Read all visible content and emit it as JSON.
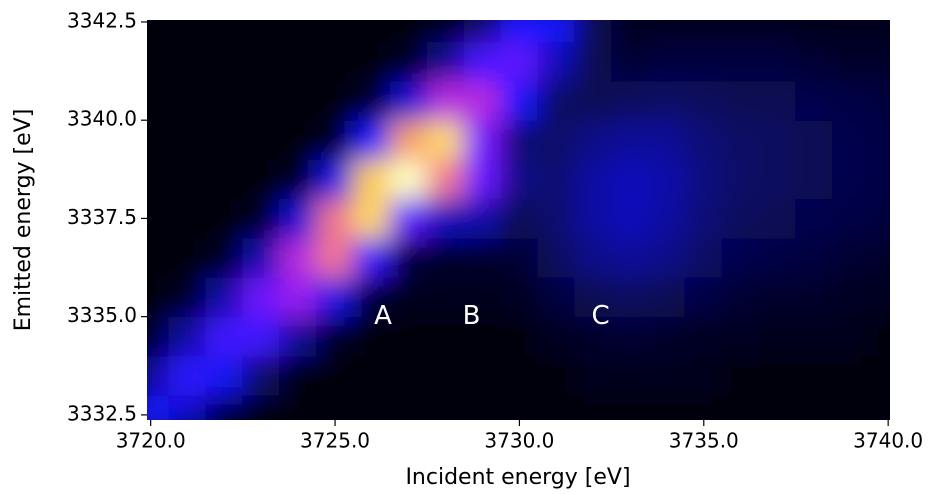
{
  "chart_data": {
    "type": "heatmap",
    "xlabel": "Incident energy [eV]",
    "ylabel": "Emitted energy [eV]",
    "colormap": "gnuplot2",
    "x": [
      3720,
      3721,
      3722,
      3723,
      3724,
      3725,
      3726,
      3727,
      3728,
      3729,
      3730,
      3731,
      3732,
      3733,
      3734,
      3735,
      3736,
      3737,
      3738,
      3739,
      3740
    ],
    "y": [
      3332.5,
      3333.5,
      3334.5,
      3335.5,
      3336.5,
      3337.5,
      3338.5,
      3339.5,
      3340.5,
      3341.5,
      3342.5
    ],
    "z": [
      [
        0.3,
        0.23,
        0.08,
        0.02,
        0.02,
        0.02,
        0.02,
        0.02,
        0.02,
        0.02,
        0.02,
        0.02,
        0.02,
        0.02,
        0.02,
        0.02,
        0.02,
        0.02,
        0.02,
        0.02,
        0.02
      ],
      [
        0.18,
        0.35,
        0.29,
        0.12,
        0.02,
        0.02,
        0.02,
        0.02,
        0.02,
        0.02,
        0.02,
        0.02,
        0.03,
        0.03,
        0.03,
        0.03,
        0.02,
        0.02,
        0.02,
        0.02,
        0.02
      ],
      [
        0.05,
        0.19,
        0.39,
        0.39,
        0.18,
        0.04,
        0.02,
        0.02,
        0.02,
        0.02,
        0.02,
        0.04,
        0.05,
        0.06,
        0.05,
        0.04,
        0.04,
        0.03,
        0.03,
        0.03,
        0.02
      ],
      [
        0.02,
        0.04,
        0.2,
        0.48,
        0.55,
        0.27,
        0.06,
        0.03,
        0.03,
        0.03,
        0.04,
        0.07,
        0.1,
        0.11,
        0.1,
        0.08,
        0.06,
        0.05,
        0.05,
        0.04,
        0.04
      ],
      [
        0.02,
        0.02,
        0.04,
        0.21,
        0.6,
        0.75,
        0.37,
        0.07,
        0.05,
        0.05,
        0.06,
        0.11,
        0.16,
        0.18,
        0.16,
        0.12,
        0.09,
        0.08,
        0.07,
        0.06,
        0.05
      ],
      [
        0.02,
        0.02,
        0.02,
        0.04,
        0.25,
        0.75,
        0.89,
        0.45,
        0.22,
        0.2,
        0.1,
        0.13,
        0.19,
        0.22,
        0.19,
        0.14,
        0.11,
        0.1,
        0.09,
        0.08,
        0.07
      ],
      [
        0.02,
        0.02,
        0.02,
        0.02,
        0.04,
        0.27,
        0.86,
        1.0,
        0.75,
        0.47,
        0.16,
        0.13,
        0.19,
        0.22,
        0.2,
        0.15,
        0.12,
        0.11,
        0.1,
        0.09,
        0.08
      ],
      [
        0.02,
        0.02,
        0.02,
        0.02,
        0.02,
        0.04,
        0.3,
        0.8,
        0.9,
        0.5,
        0.14,
        0.12,
        0.16,
        0.18,
        0.18,
        0.14,
        0.12,
        0.11,
        0.1,
        0.09,
        0.08
      ],
      [
        0.02,
        0.02,
        0.02,
        0.02,
        0.02,
        0.02,
        0.05,
        0.25,
        0.6,
        0.6,
        0.3,
        0.12,
        0.1,
        0.11,
        0.12,
        0.11,
        0.1,
        0.1,
        0.09,
        0.08,
        0.07
      ],
      [
        0.02,
        0.02,
        0.02,
        0.02,
        0.02,
        0.02,
        0.02,
        0.04,
        0.17,
        0.4,
        0.45,
        0.22,
        0.1,
        0.06,
        0.07,
        0.07,
        0.07,
        0.07,
        0.06,
        0.05,
        0.05
      ],
      [
        0.02,
        0.02,
        0.02,
        0.02,
        0.02,
        0.02,
        0.02,
        0.02,
        0.03,
        0.12,
        0.3,
        0.3,
        0.1,
        0.04,
        0.04,
        0.04,
        0.04,
        0.04,
        0.03,
        0.03,
        0.03
      ]
    ],
    "zlim": [
      0,
      1
    ],
    "xlim": [
      3719.9,
      3740.05
    ],
    "ylim": [
      3332.37,
      3342.55
    ],
    "xticks": [
      {
        "value": 3720,
        "label": "3720.0"
      },
      {
        "value": 3725,
        "label": "3725.0"
      },
      {
        "value": 3730,
        "label": "3730.0"
      },
      {
        "value": 3735,
        "label": "3735.0"
      },
      {
        "value": 3740,
        "label": "3740.0"
      }
    ],
    "yticks": [
      3332.5,
      {
        "value": 3335,
        "label": "3335.0"
      },
      3337.5,
      {
        "value": 3340,
        "label": "3340.0"
      },
      3342.5
    ],
    "annotations": [
      {
        "text": "A",
        "x": 3726.3,
        "y": 3335
      },
      {
        "text": "B",
        "x": 3728.7,
        "y": 3335
      },
      {
        "text": "C",
        "x": 3732.2,
        "y": 3335
      }
    ]
  }
}
